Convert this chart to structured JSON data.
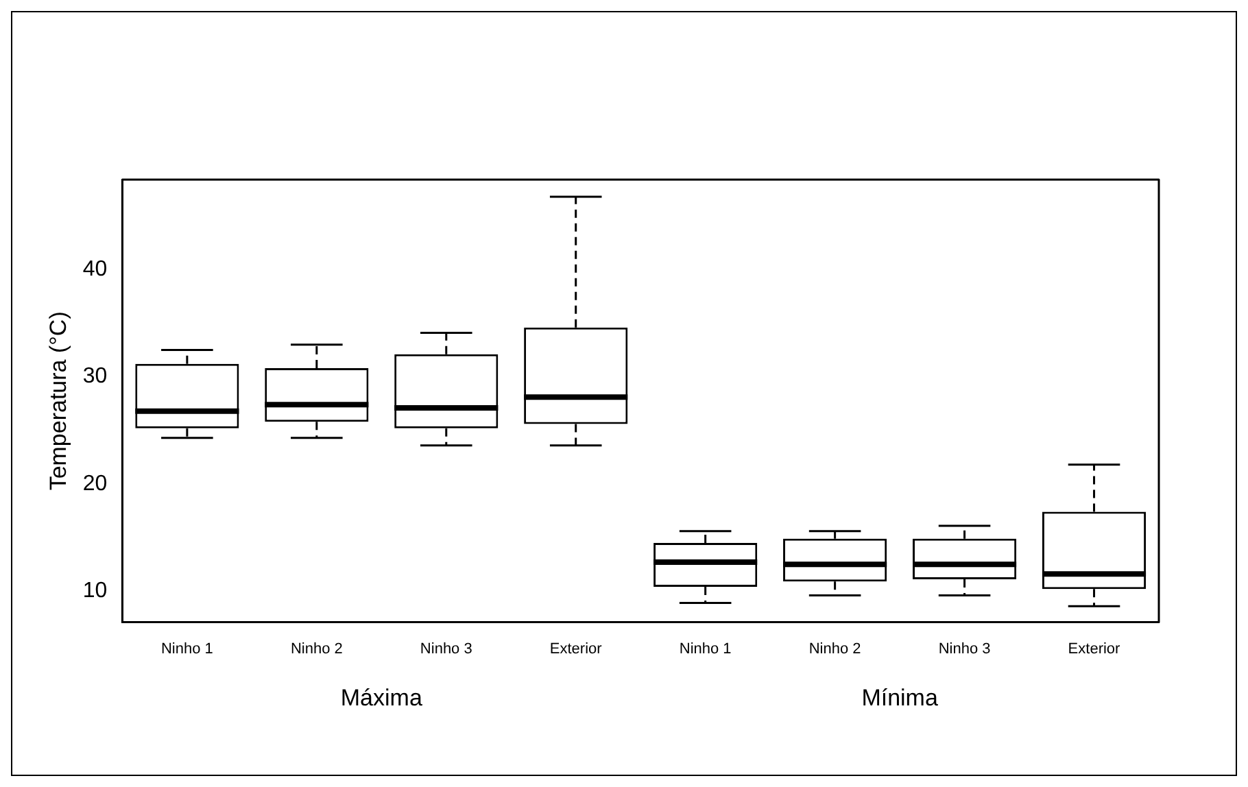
{
  "chart_data": {
    "type": "box",
    "ylabel": "Temperatura (°C)",
    "categories": [
      "Ninho 1",
      "Ninho 2",
      "Ninho 3",
      "Exterior",
      "Ninho 1",
      "Ninho 2",
      "Ninho 3",
      "Exterior"
    ],
    "boxes": [
      {
        "low": 24.3,
        "q1": 25.2,
        "median": 26.8,
        "q3": 31.2,
        "high": 32.5
      },
      {
        "low": 24.3,
        "q1": 25.8,
        "median": 27.4,
        "q3": 30.8,
        "high": 33.0
      },
      {
        "low": 23.6,
        "q1": 25.2,
        "median": 27.1,
        "q3": 32.1,
        "high": 34.1
      },
      {
        "low": 23.6,
        "q1": 25.6,
        "median": 28.1,
        "q3": 34.6,
        "high": 46.8
      },
      {
        "low": 8.9,
        "q1": 10.4,
        "median": 12.7,
        "q3": 14.5,
        "high": 15.6
      },
      {
        "low": 9.6,
        "q1": 10.9,
        "median": 12.5,
        "q3": 14.9,
        "high": 15.6
      },
      {
        "low": 9.6,
        "q1": 11.1,
        "median": 12.5,
        "q3": 14.9,
        "high": 16.1
      },
      {
        "low": 8.6,
        "q1": 10.2,
        "median": 11.6,
        "q3": 17.4,
        "high": 21.8
      }
    ],
    "color": "#000000",
    "ylim": [
      7.1,
      48.4
    ],
    "yticks": [
      10,
      20,
      30,
      40
    ],
    "grid": false,
    "legend": false,
    "annotations": [
      "Máxima",
      "Mínima"
    ]
  }
}
